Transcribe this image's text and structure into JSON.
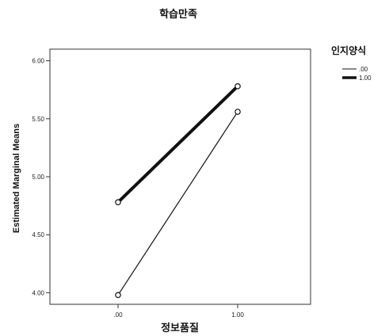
{
  "chart_data": {
    "type": "line",
    "title": "학습만족",
    "xlabel": "정보품질",
    "ylabel": "Estimated Marginal Means",
    "categories": [
      ".00",
      "1.00"
    ],
    "ylim": [
      3.9,
      6.1
    ],
    "yticks": [
      "4.00",
      "4.50",
      "5.00",
      "5.50",
      "6.00"
    ],
    "legend_title": "인지양식",
    "legend_position": "right",
    "grid": false,
    "series": [
      {
        "name": ".00",
        "values": [
          3.98,
          5.56
        ],
        "color": "#111111",
        "style": "thin"
      },
      {
        "name": "1.00",
        "values": [
          4.78,
          5.78
        ],
        "color": "#111111",
        "style": "thick"
      }
    ]
  }
}
